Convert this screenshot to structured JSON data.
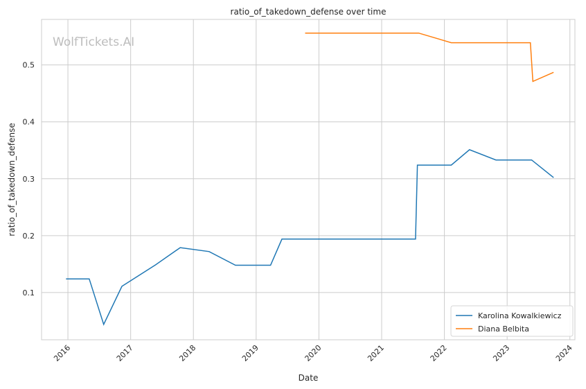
{
  "chart_data": {
    "type": "line",
    "title": "ratio_of_takedown_defense over time",
    "xlabel": "Date",
    "ylabel": "ratio_of_takedown_defense",
    "watermark": "WolfTickets.AI",
    "xlim": [
      2015.58,
      2024.08
    ],
    "ylim": [
      0.017,
      0.58
    ],
    "xticks": [
      2016,
      2017,
      2018,
      2019,
      2020,
      2021,
      2022,
      2023,
      2024
    ],
    "xtick_labels": [
      "2016",
      "2017",
      "2018",
      "2019",
      "2020",
      "2021",
      "2022",
      "2023",
      "2024"
    ],
    "yticks": [
      0.1,
      0.2,
      0.3,
      0.4,
      0.5
    ],
    "ytick_labels": [
      "0.1",
      "0.2",
      "0.3",
      "0.4",
      "0.5"
    ],
    "grid": true,
    "legend_position": "bottom-right",
    "series": [
      {
        "name": "Karolina Kowalkiewicz",
        "color": "#1f77b4",
        "x": [
          2015.97,
          2016.34,
          2016.57,
          2016.86,
          2017.4,
          2017.79,
          2018.25,
          2018.67,
          2019.23,
          2019.41,
          2021.54,
          2021.57,
          2022.11,
          2022.4,
          2022.82,
          2023.39,
          2023.74
        ],
        "y": [
          0.124,
          0.124,
          0.044,
          0.111,
          0.149,
          0.179,
          0.172,
          0.148,
          0.148,
          0.194,
          0.194,
          0.324,
          0.324,
          0.351,
          0.333,
          0.333,
          0.302
        ]
      },
      {
        "name": "Diana Belbita",
        "color": "#ff7f0e",
        "x": [
          2019.78,
          2021.59,
          2022.11,
          2023.37,
          2023.41,
          2023.74
        ],
        "y": [
          0.556,
          0.556,
          0.539,
          0.539,
          0.471,
          0.487
        ]
      }
    ]
  }
}
